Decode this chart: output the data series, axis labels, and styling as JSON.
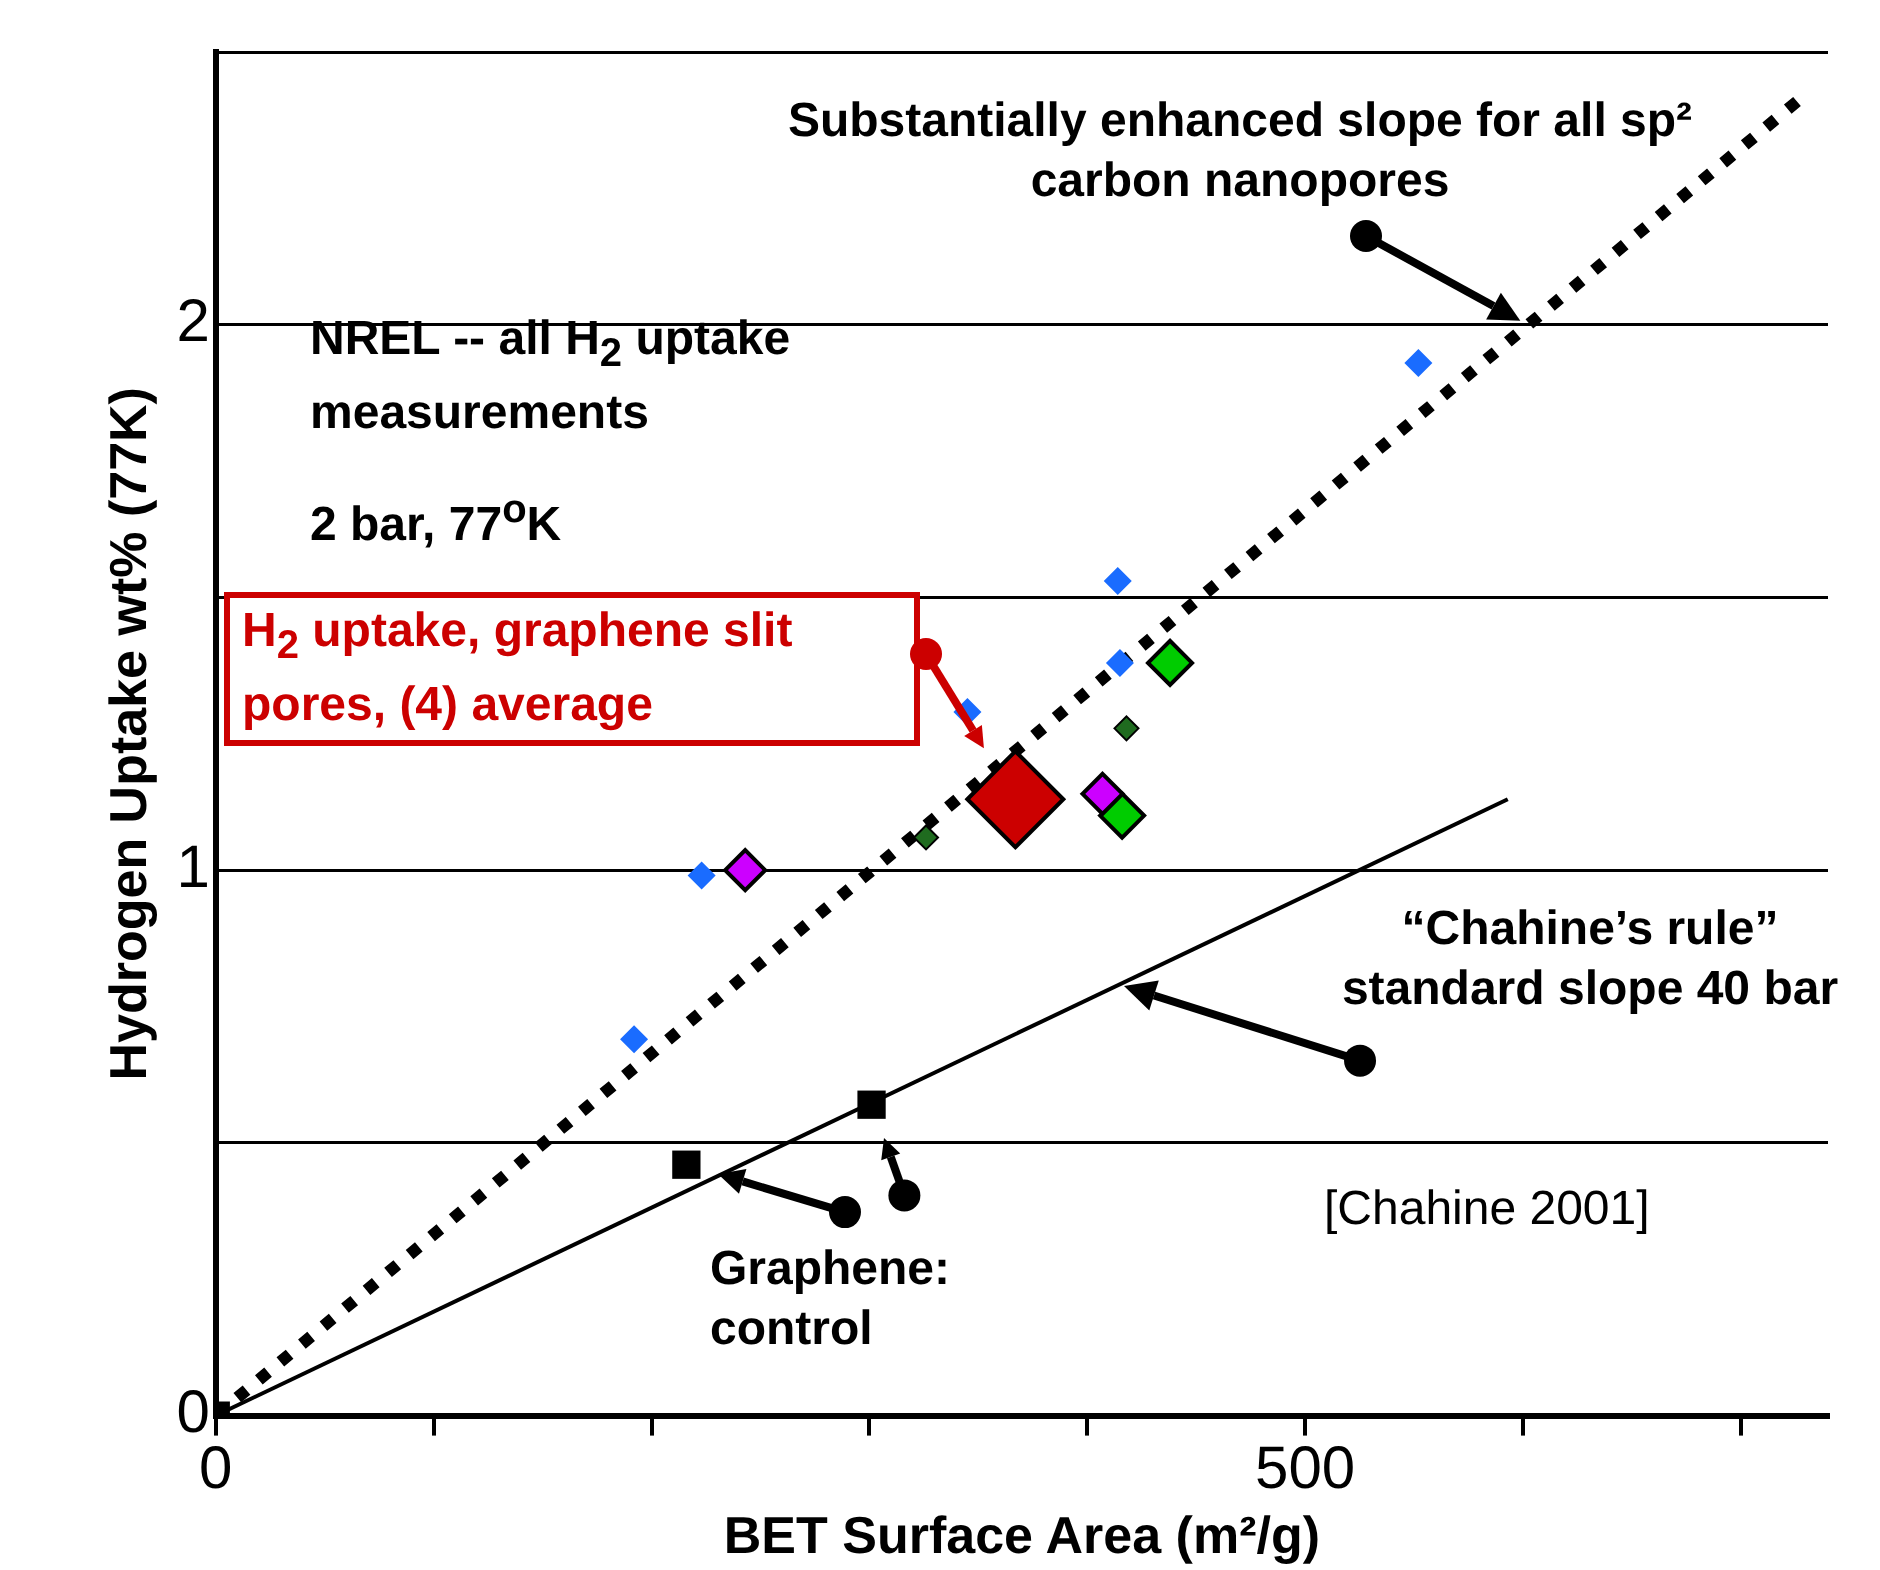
{
  "chart_data": {
    "type": "scatter",
    "xlabel": "BET Surface Area (m²/g)",
    "ylabel": "Hydrogen Uptake wt% (77K)",
    "xlim": [
      0,
      740
    ],
    "xticks": [
      0,
      {
        "value": 100,
        "label": null
      },
      {
        "value": 200,
        "label": null
      },
      {
        "value": 300,
        "label": null
      },
      {
        "value": 400,
        "label": null
      },
      500,
      {
        "value": 600,
        "label": null
      },
      {
        "value": 700,
        "label": null
      }
    ],
    "ylim": [
      0,
      2.5
    ],
    "yticks": [
      0,
      {
        "value": 0.5,
        "label": null
      },
      1,
      {
        "value": 1.5,
        "label": null
      },
      2,
      {
        "value": 2.5,
        "label": null
      }
    ],
    "grid": "y",
    "legend": false,
    "series": [
      {
        "color": "#1a6cff",
        "marker": "diamond",
        "x": [
          192,
          223,
          345,
          414,
          415,
          552
        ],
        "values": [
          0.69,
          0.99,
          1.29,
          1.53,
          1.38,
          1.93
        ]
      },
      {
        "color": "#cc00ff",
        "marker": "diamond",
        "x": [
          243,
          407
        ],
        "values": [
          1.0,
          1.14
        ]
      },
      {
        "color": "#00cc00",
        "marker": "diamond",
        "x": [
          438,
          416
        ],
        "values": [
          1.38,
          1.1
        ]
      },
      {
        "color": "#1f6b1f",
        "marker": "diamond",
        "x": [
          326,
          418
        ],
        "values": [
          1.06,
          1.26
        ]
      },
      {
        "color": "#cc0000",
        "marker": "diamond",
        "x": [
          367
        ],
        "values": [
          1.13
        ]
      },
      {
        "color": "#000000",
        "marker": "square",
        "x": [
          0,
          216,
          301
        ],
        "values": [
          0,
          0.46,
          0.57
        ]
      },
      {
        "type": "line",
        "color": "#000000",
        "marker": "none",
        "line_style": "dotted",
        "x": [
          0,
          726
        ],
        "values": [
          0,
          2.41
        ]
      },
      {
        "type": "line",
        "color": "#000000",
        "marker": "none",
        "line_style": "solid",
        "x": [
          0,
          593
        ],
        "values": [
          0,
          1.13
        ]
      }
    ],
    "annotations": [
      {
        "text": "Substantially enhanced slope for all sp² carbon nanopores",
        "x": 602,
        "y": 2.0
      },
      "NREL -- all  H$_{2}$ uptake measurements",
      "2 bar, 77$^{o}$K",
      "H$_{2}$ uptake, graphene slit pores, (4) average",
      "“Chahine’s rule” standard slope 40 bar",
      "[Chahine 2001]",
      {
        "text": "Graphene: control",
        "x": 216,
        "y": 0.46
      }
    ]
  }
}
